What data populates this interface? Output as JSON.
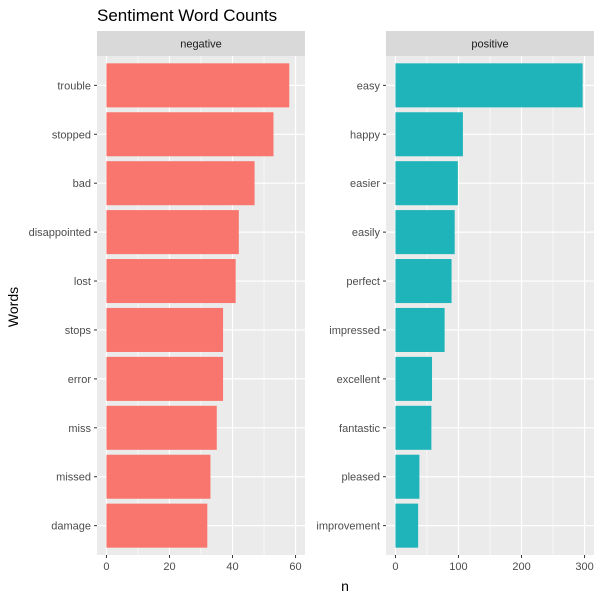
{
  "chart_data": {
    "type": "bar",
    "orientation": "horizontal",
    "title": "Sentiment Word Counts",
    "xlabel": "n",
    "ylabel": "Words",
    "grid": true,
    "legend": "none",
    "panels": [
      {
        "name": "negative",
        "color": "#F8766D",
        "xlim": [
          0,
          60
        ],
        "xticks": [
          0,
          20,
          40,
          60
        ],
        "categories": [
          "trouble",
          "stopped",
          "bad",
          "disappointed",
          "lost",
          "stops",
          "error",
          "miss",
          "missed",
          "damage"
        ],
        "values": [
          58,
          53,
          47,
          42,
          41,
          37,
          37,
          35,
          33,
          32
        ]
      },
      {
        "name": "positive",
        "color": "#1EB4B9",
        "xlim": [
          0,
          300
        ],
        "xticks": [
          0,
          100,
          200,
          300
        ],
        "categories": [
          "easy",
          "happy",
          "easier",
          "easily",
          "perfect",
          "impressed",
          "excellent",
          "fantastic",
          "pleased",
          "improvement"
        ],
        "values": [
          297,
          107,
          99,
          94,
          89,
          78,
          58,
          57,
          38,
          36
        ]
      }
    ],
    "colors": {
      "panel_background": "#EBEBEB",
      "grid": "#FFFFFF",
      "strip_background": "#D9D9D9",
      "text": "#000000",
      "tick_text": "#4D4D4D"
    }
  }
}
